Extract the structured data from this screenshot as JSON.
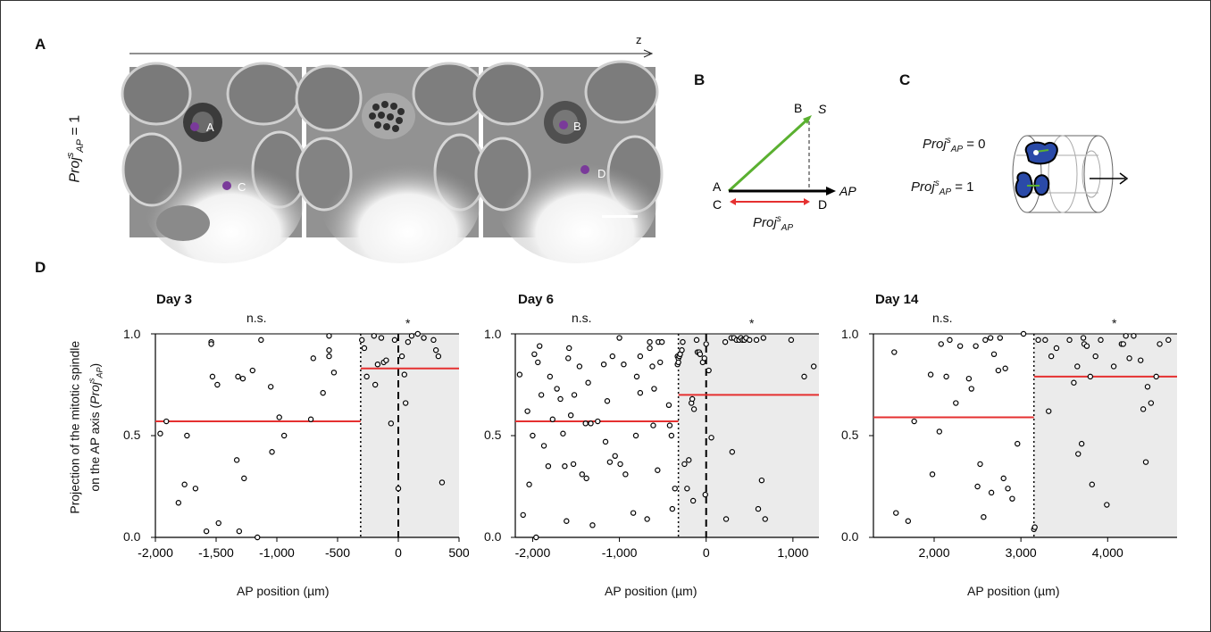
{
  "panel_labels": {
    "a": "A",
    "b": "B",
    "c": "C",
    "d": "D"
  },
  "panel_a": {
    "z_label": "z",
    "row_label": "Proj",
    "row_label_sup": "s",
    "row_label_sub": "AP",
    "row_label_value": " = 1",
    "points": [
      "A",
      "C",
      "B",
      "D"
    ]
  },
  "panel_b": {
    "labels": {
      "a": "A",
      "b": "B",
      "c": "C",
      "d": "D",
      "s": "S",
      "ap": "AP"
    },
    "proj_label": "Proj",
    "proj_sup": "s",
    "proj_sub": "AP",
    "colors": {
      "vector": "#5ab030",
      "axis": "#000000",
      "projection": "#e53030"
    }
  },
  "panel_c": {
    "label_zero_base": "Proj",
    "label_zero_sup": "s",
    "label_zero_sub": "AP",
    "label_zero_value": " = 0",
    "label_one_base": "Proj",
    "label_one_sup": "s",
    "label_one_sub": "AP",
    "label_one_value": " = 1",
    "colors": {
      "cell": "#2a4aa8",
      "spindle": "#5ab030"
    }
  },
  "panel_d": {
    "ylabel_line1": "Projection of  the mitotic spindle",
    "ylabel_line2": "on the AP axis (",
    "ylabel_proj": "Proj",
    "ylabel_sup": "s",
    "ylabel_sub": "AP",
    "ylabel_end": ")",
    "y_ticks": [
      "1.0",
      "0.5",
      "0.0"
    ]
  },
  "chart_data": [
    {
      "type": "scatter",
      "title": "Day 3",
      "xlabel": "AP position (µm)",
      "ylabel": "Projection of  the mitotic spindle on the AP axis (Proj s AP)",
      "xlim": [
        -2000,
        500
      ],
      "ylim": [
        0,
        1
      ],
      "x_ticks": [
        "-2,000",
        "-1,500",
        "-1,000",
        "-500",
        "0",
        "500"
      ],
      "x_tick_values": [
        -2000,
        -1500,
        -1000,
        -500,
        0,
        500
      ],
      "annotations": {
        "left": "n.s.",
        "right": "*"
      },
      "dotted_line_x": -310,
      "dashed_line_x": 0,
      "shaded_from_x": -310,
      "mean_left": 0.57,
      "mean_right": 0.83,
      "points": [
        [
          -1960,
          0.51
        ],
        [
          -1910,
          0.57
        ],
        [
          -1810,
          0.17
        ],
        [
          -1760,
          0.26
        ],
        [
          -1740,
          0.5
        ],
        [
          -1670,
          0.24
        ],
        [
          -1580,
          0.03
        ],
        [
          -1540,
          0.96
        ],
        [
          -1540,
          0.95
        ],
        [
          -1530,
          0.79
        ],
        [
          -1490,
          0.75
        ],
        [
          -1480,
          0.07
        ],
        [
          -1330,
          0.38
        ],
        [
          -1320,
          0.79
        ],
        [
          -1310,
          0.03
        ],
        [
          -1280,
          0.78
        ],
        [
          -1270,
          0.29
        ],
        [
          -1200,
          0.82
        ],
        [
          -1160,
          0.0
        ],
        [
          -1130,
          0.97
        ],
        [
          -1050,
          0.74
        ],
        [
          -1040,
          0.42
        ],
        [
          -980,
          0.59
        ],
        [
          -940,
          0.5
        ],
        [
          -720,
          0.58
        ],
        [
          -700,
          0.88
        ],
        [
          -620,
          0.71
        ],
        [
          -570,
          0.99
        ],
        [
          -570,
          0.92
        ],
        [
          -570,
          0.89
        ],
        [
          -530,
          0.81
        ],
        [
          -300,
          0.97
        ],
        [
          -280,
          0.93
        ],
        [
          -260,
          0.79
        ],
        [
          -200,
          0.99
        ],
        [
          -190,
          0.75
        ],
        [
          -170,
          0.85
        ],
        [
          -140,
          0.98
        ],
        [
          -120,
          0.86
        ],
        [
          -100,
          0.87
        ],
        [
          -60,
          0.56
        ],
        [
          -30,
          0.97
        ],
        [
          0,
          0.24
        ],
        [
          30,
          0.89
        ],
        [
          50,
          0.8
        ],
        [
          60,
          0.66
        ],
        [
          80,
          0.96
        ],
        [
          110,
          0.99
        ],
        [
          160,
          1.0
        ],
        [
          210,
          0.98
        ],
        [
          290,
          0.97
        ],
        [
          310,
          0.92
        ],
        [
          330,
          0.89
        ],
        [
          360,
          0.27
        ]
      ]
    },
    {
      "type": "scatter",
      "title": "Day 6",
      "xlabel": "AP position (µm)",
      "xlim": [
        -2200,
        1300
      ],
      "ylim": [
        0,
        1
      ],
      "x_ticks": [
        "-2,000",
        "-1,000",
        "0",
        "1,000"
      ],
      "x_tick_values": [
        -2000,
        -1000,
        0,
        1000
      ],
      "annotations": {
        "left": "n.s.",
        "right": "*"
      },
      "dotted_line_x": -320,
      "dashed_line_x": 0,
      "shaded_from_x": -320,
      "mean_left": 0.57,
      "mean_right": 0.7,
      "points": [
        [
          -2150,
          0.8
        ],
        [
          -2110,
          0.11
        ],
        [
          -2060,
          0.62
        ],
        [
          -2040,
          0.26
        ],
        [
          -2000,
          0.5
        ],
        [
          -1980,
          0.9
        ],
        [
          -1960,
          0.0
        ],
        [
          -1940,
          0.86
        ],
        [
          -1920,
          0.94
        ],
        [
          -1900,
          0.7
        ],
        [
          -1870,
          0.45
        ],
        [
          -1820,
          0.35
        ],
        [
          -1800,
          0.79
        ],
        [
          -1770,
          0.58
        ],
        [
          -1720,
          0.73
        ],
        [
          -1680,
          0.68
        ],
        [
          -1650,
          0.51
        ],
        [
          -1630,
          0.35
        ],
        [
          -1610,
          0.08
        ],
        [
          -1590,
          0.88
        ],
        [
          -1580,
          0.93
        ],
        [
          -1560,
          0.6
        ],
        [
          -1530,
          0.36
        ],
        [
          -1520,
          0.7
        ],
        [
          -1460,
          0.84
        ],
        [
          -1430,
          0.31
        ],
        [
          -1390,
          0.56
        ],
        [
          -1380,
          0.29
        ],
        [
          -1360,
          0.76
        ],
        [
          -1330,
          0.56
        ],
        [
          -1310,
          0.06
        ],
        [
          -1250,
          0.57
        ],
        [
          -1180,
          0.85
        ],
        [
          -1160,
          0.47
        ],
        [
          -1140,
          0.67
        ],
        [
          -1110,
          0.37
        ],
        [
          -1080,
          0.89
        ],
        [
          -1050,
          0.4
        ],
        [
          -1000,
          0.98
        ],
        [
          -990,
          0.36
        ],
        [
          -950,
          0.85
        ],
        [
          -930,
          0.31
        ],
        [
          -840,
          0.12
        ],
        [
          -810,
          0.5
        ],
        [
          -800,
          0.79
        ],
        [
          -760,
          0.89
        ],
        [
          -760,
          0.71
        ],
        [
          -680,
          0.09
        ],
        [
          -650,
          0.96
        ],
        [
          -650,
          0.93
        ],
        [
          -620,
          0.84
        ],
        [
          -610,
          0.55
        ],
        [
          -600,
          0.73
        ],
        [
          -560,
          0.33
        ],
        [
          -550,
          0.96
        ],
        [
          -530,
          0.86
        ],
        [
          -510,
          0.96
        ],
        [
          -430,
          0.65
        ],
        [
          -420,
          0.55
        ],
        [
          -400,
          0.5
        ],
        [
          -390,
          0.14
        ],
        [
          -360,
          0.24
        ],
        [
          -330,
          0.89
        ],
        [
          -330,
          0.85
        ],
        [
          -320,
          0.88
        ],
        [
          -320,
          0.86
        ],
        [
          -310,
          0.89
        ],
        [
          -300,
          0.9
        ],
        [
          -280,
          0.92
        ],
        [
          -270,
          0.96
        ],
        [
          -250,
          0.36
        ],
        [
          -220,
          0.24
        ],
        [
          -200,
          0.38
        ],
        [
          -170,
          0.66
        ],
        [
          -160,
          0.68
        ],
        [
          -150,
          0.18
        ],
        [
          -140,
          0.63
        ],
        [
          -110,
          0.97
        ],
        [
          -100,
          0.91
        ],
        [
          -80,
          0.91
        ],
        [
          -70,
          0.9
        ],
        [
          -40,
          0.86
        ],
        [
          -20,
          0.88
        ],
        [
          -10,
          0.21
        ],
        [
          0,
          0.95
        ],
        [
          30,
          0.82
        ],
        [
          60,
          0.49
        ],
        [
          220,
          0.96
        ],
        [
          230,
          0.09
        ],
        [
          290,
          0.98
        ],
        [
          300,
          0.42
        ],
        [
          320,
          0.98
        ],
        [
          350,
          0.97
        ],
        [
          380,
          0.97
        ],
        [
          400,
          0.98
        ],
        [
          420,
          0.97
        ],
        [
          440,
          0.97
        ],
        [
          460,
          0.98
        ],
        [
          500,
          0.97
        ],
        [
          580,
          0.97
        ],
        [
          600,
          0.14
        ],
        [
          640,
          0.28
        ],
        [
          660,
          0.98
        ],
        [
          680,
          0.09
        ],
        [
          980,
          0.97
        ],
        [
          1130,
          0.79
        ],
        [
          1240,
          0.84
        ]
      ]
    },
    {
      "type": "scatter",
      "title": "Day 14",
      "xlabel": "AP position (µm)",
      "xlim": [
        1300,
        4800
      ],
      "ylim": [
        0,
        1
      ],
      "x_ticks": [
        "2,000",
        "3,000",
        "4,000"
      ],
      "x_tick_values": [
        2000,
        3000,
        4000
      ],
      "annotations": {
        "left": "n.s.",
        "right": "*"
      },
      "dotted_line_x": 3150,
      "shaded_from_x": 3150,
      "mean_left": 0.59,
      "mean_right": 0.79,
      "points": [
        [
          1540,
          0.91
        ],
        [
          1560,
          0.12
        ],
        [
          1700,
          0.08
        ],
        [
          1770,
          0.57
        ],
        [
          1960,
          0.8
        ],
        [
          1980,
          0.31
        ],
        [
          2060,
          0.52
        ],
        [
          2080,
          0.95
        ],
        [
          2140,
          0.79
        ],
        [
          2180,
          0.97
        ],
        [
          2250,
          0.66
        ],
        [
          2300,
          0.94
        ],
        [
          2400,
          0.78
        ],
        [
          2430,
          0.73
        ],
        [
          2480,
          0.94
        ],
        [
          2500,
          0.25
        ],
        [
          2530,
          0.36
        ],
        [
          2570,
          0.1
        ],
        [
          2590,
          0.97
        ],
        [
          2650,
          0.98
        ],
        [
          2660,
          0.22
        ],
        [
          2690,
          0.9
        ],
        [
          2740,
          0.82
        ],
        [
          2760,
          0.98
        ],
        [
          2800,
          0.29
        ],
        [
          2820,
          0.83
        ],
        [
          2850,
          0.24
        ],
        [
          2900,
          0.19
        ],
        [
          2960,
          0.46
        ],
        [
          3030,
          1.0
        ],
        [
          3150,
          0.04
        ],
        [
          3160,
          0.05
        ],
        [
          3200,
          0.97
        ],
        [
          3280,
          0.97
        ],
        [
          3320,
          0.62
        ],
        [
          3350,
          0.89
        ],
        [
          3410,
          0.93
        ],
        [
          3560,
          0.97
        ],
        [
          3610,
          0.76
        ],
        [
          3650,
          0.84
        ],
        [
          3660,
          0.41
        ],
        [
          3700,
          0.46
        ],
        [
          3720,
          0.98
        ],
        [
          3730,
          0.95
        ],
        [
          3760,
          0.94
        ],
        [
          3800,
          0.79
        ],
        [
          3820,
          0.26
        ],
        [
          3860,
          0.89
        ],
        [
          3920,
          0.97
        ],
        [
          3990,
          0.16
        ],
        [
          4070,
          0.84
        ],
        [
          4160,
          0.95
        ],
        [
          4180,
          0.95
        ],
        [
          4210,
          0.99
        ],
        [
          4250,
          0.88
        ],
        [
          4300,
          0.99
        ],
        [
          4380,
          0.87
        ],
        [
          4410,
          0.63
        ],
        [
          4440,
          0.37
        ],
        [
          4460,
          0.74
        ],
        [
          4500,
          0.66
        ],
        [
          4560,
          0.79
        ],
        [
          4600,
          0.95
        ],
        [
          4700,
          0.97
        ]
      ]
    }
  ]
}
